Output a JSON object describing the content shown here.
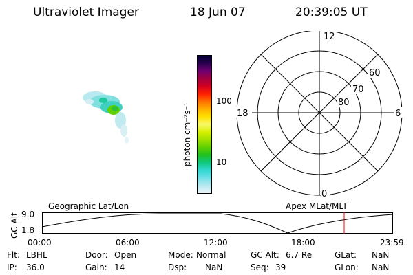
{
  "header": {
    "title": "Ultraviolet Imager",
    "date": "18 Jun 07",
    "time": "20:39:05 UT"
  },
  "colorbar": {
    "label": "photon cm⁻²s⁻¹",
    "ticks": [
      "100",
      "10"
    ],
    "colors": [
      "#000030",
      "#2a0050",
      "#700070",
      "#a00040",
      "#d40020",
      "#ff2000",
      "#ff7000",
      "#ffb000",
      "#ffe000",
      "#f8f86a",
      "#d8f000",
      "#a0e000",
      "#60d000",
      "#20c020",
      "#10c880",
      "#30d8d0",
      "#70e0e8",
      "#b8e8f0",
      "#e8f4f8"
    ]
  },
  "polar": {
    "labels": {
      "top": "12",
      "left": "18",
      "right": "6",
      "bottom": "0"
    },
    "rings": [
      "60",
      "70",
      "80"
    ]
  },
  "timeline": {
    "left_label": "Geographic Lat/Lon",
    "right_label": "Apex MLat/MLT",
    "y_axis_label": "GC Alt",
    "y_ticks": [
      "9.0",
      "1.8"
    ],
    "x_ticks": [
      "00:00",
      "06:00",
      "12:00",
      "18:00",
      "23:59"
    ],
    "marker_color": "#ff0000"
  },
  "status": {
    "row1": [
      {
        "label": "Flt:",
        "value": "LBHL"
      },
      {
        "label": "Door:",
        "value": "Open"
      },
      {
        "label": "Mode:",
        "value": "Normal"
      },
      {
        "label": "GC Alt:",
        "value": "6.7 Re"
      },
      {
        "label": "GLat:",
        "value": "NaN"
      }
    ],
    "row2": [
      {
        "label": "IP:",
        "value": "36.0"
      },
      {
        "label": "Gain:",
        "value": "14"
      },
      {
        "label": "Dsp:",
        "value": "NaN"
      },
      {
        "label": "Seq:",
        "value": "39"
      },
      {
        "label": "GLon:",
        "value": "NaN"
      }
    ]
  }
}
